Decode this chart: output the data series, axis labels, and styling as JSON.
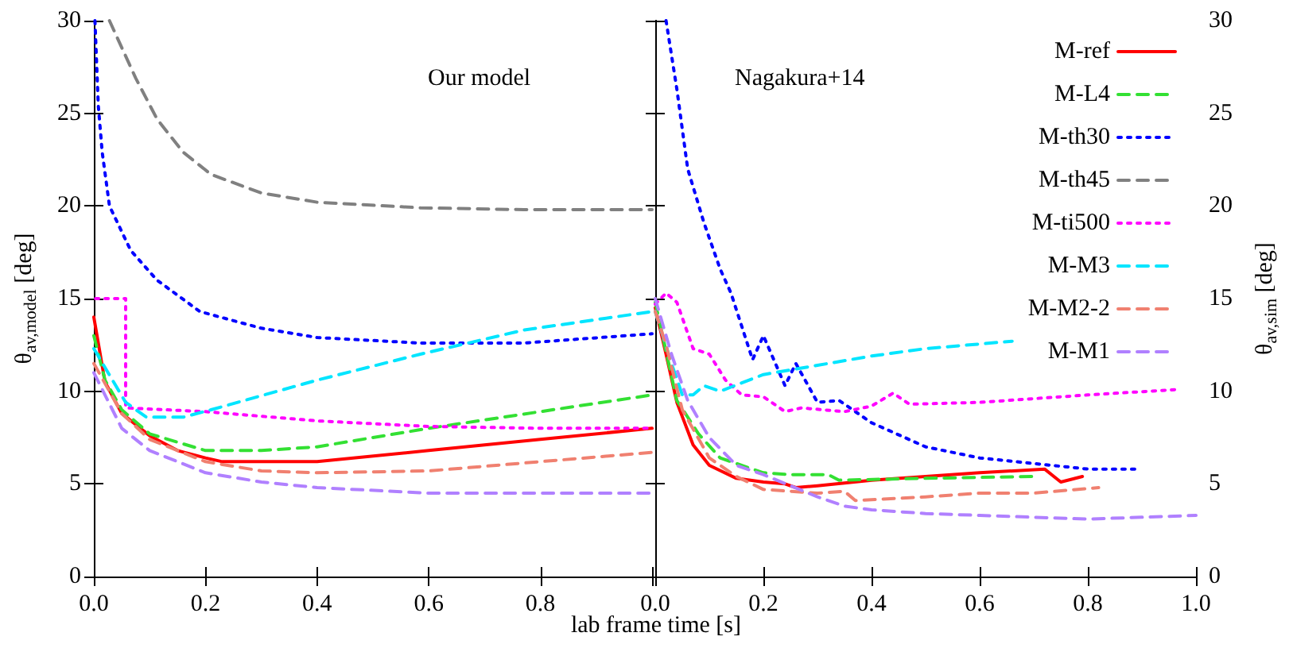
{
  "chart_data": [
    {
      "type": "line",
      "xlabel": "lab frame time [s]",
      "ylabel": "θ$_{av,model}$ [deg]",
      "annotations": [
        "Our model"
      ],
      "xlim": [
        0,
        1
      ],
      "xticks": [
        {
          "value": 0,
          "label": "0.0"
        },
        {
          "value": 0.2,
          "label": "0.2"
        },
        {
          "value": 0.4,
          "label": "0.4"
        },
        {
          "value": 0.6,
          "label": "0.6"
        },
        {
          "value": 0.8,
          "label": "0.8"
        },
        {
          "value": 1,
          "label": null
        }
      ],
      "ylim": [
        0,
        30
      ],
      "yticks": [
        0,
        5,
        10,
        15,
        20,
        25,
        30
      ],
      "grid": false,
      "legend": false,
      "marker": "none",
      "series": [
        {
          "color": "#ff0000",
          "line_style": "solid",
          "x": [
            0,
            0.02,
            0.05,
            0.1,
            0.15,
            0.2,
            0.23,
            0.4,
            0.6,
            0.8,
            1.0
          ],
          "values": [
            14,
            10.5,
            8.8,
            7.6,
            6.8,
            6.4,
            6.2,
            6.2,
            6.8,
            7.4,
            8.0
          ]
        },
        {
          "color": "#33e033",
          "line_style": "dashed",
          "x": [
            0,
            0.02,
            0.05,
            0.1,
            0.2,
            0.3,
            0.4,
            0.6,
            0.8,
            1.0
          ],
          "values": [
            13,
            10.6,
            9,
            7.7,
            6.8,
            6.8,
            7.0,
            8.0,
            8.9,
            9.8
          ]
        },
        {
          "color": "#0000ff",
          "line_style": "dotted",
          "x": [
            0.002,
            0.008,
            0.015,
            0.028,
            0.066,
            0.113,
            0.19,
            0.3,
            0.4,
            0.585,
            0.77,
            1.0
          ],
          "values": [
            30,
            25.4,
            22.9,
            20,
            17.6,
            16,
            14.3,
            13.4,
            12.9,
            12.6,
            12.6,
            13.1
          ]
        },
        {
          "color": "#808080",
          "line_style": "dashed",
          "x": [
            0.028,
            0.075,
            0.113,
            0.16,
            0.21,
            0.3,
            0.4,
            0.585,
            0.77,
            1.0
          ],
          "values": [
            30,
            26.9,
            24.7,
            22.9,
            21.7,
            20.7,
            20.2,
            19.9,
            19.8,
            19.8
          ]
        },
        {
          "color": "#ff00ff",
          "line_style": "dotted",
          "x": [
            0.003,
            0.057,
            0.057,
            0.2,
            0.4,
            0.6,
            0.8,
            1.0
          ],
          "values": [
            15,
            15,
            9.1,
            8.9,
            8.4,
            8.1,
            8.0,
            8.0
          ]
        },
        {
          "color": "#00e5ff",
          "line_style": "dashed",
          "x": [
            0,
            0.057,
            0.094,
            0.16,
            0.21,
            0.4,
            0.585,
            0.77,
            1.0
          ],
          "values": [
            12.3,
            9.4,
            8.6,
            8.6,
            9.0,
            10.6,
            12.0,
            13.3,
            14.3
          ]
        },
        {
          "color": "#f08070",
          "line_style": "dashed",
          "x": [
            0,
            0.05,
            0.1,
            0.2,
            0.3,
            0.4,
            0.6,
            0.8,
            1.0
          ],
          "values": [
            11.5,
            8.8,
            7.4,
            6.2,
            5.7,
            5.6,
            5.7,
            6.2,
            6.7
          ]
        },
        {
          "color": "#b080ff",
          "line_style": "dashed",
          "x": [
            0,
            0.05,
            0.1,
            0.2,
            0.3,
            0.4,
            0.6,
            0.8,
            1.0
          ],
          "values": [
            11,
            8.0,
            6.8,
            5.6,
            5.1,
            4.8,
            4.5,
            4.5,
            4.5
          ]
        }
      ]
    },
    {
      "type": "line",
      "y2label": "θ$_{av,sim}$ [deg]",
      "annotations": [
        "Nagakura+14"
      ],
      "xlim": [
        0,
        1
      ],
      "xticks": [
        {
          "value": 0,
          "label": "0.0"
        },
        {
          "value": 0.2,
          "label": "0.2"
        },
        {
          "value": 0.4,
          "label": "0.4"
        },
        {
          "value": 0.6,
          "label": "0.6"
        },
        {
          "value": 0.8,
          "label": "0.8"
        },
        {
          "value": 1,
          "label": "1.0"
        }
      ],
      "y2lim": [
        0,
        30
      ],
      "y2ticks": [
        0,
        5,
        10,
        15,
        20,
        25,
        30
      ],
      "grid": false,
      "legend": "top right",
      "marker": "none",
      "series": [
        {
          "name": "M-ref",
          "axis": "y2",
          "color": "#ff0000",
          "line_style": "solid",
          "x": [
            0,
            0.02,
            0.04,
            0.07,
            0.1,
            0.15,
            0.2,
            0.24,
            0.26,
            0.3,
            0.4,
            0.5,
            0.6,
            0.72,
            0.75,
            0.79
          ],
          "values": [
            14.5,
            12,
            9.4,
            7.1,
            6.0,
            5.3,
            5.1,
            5.0,
            4.8,
            4.9,
            5.2,
            5.4,
            5.6,
            5.8,
            5.1,
            5.4
          ]
        },
        {
          "name": "M-L4",
          "axis": "y2",
          "color": "#33e033",
          "line_style": "dashed",
          "x": [
            0,
            0.04,
            0.08,
            0.12,
            0.15,
            0.2,
            0.25,
            0.32,
            0.34,
            0.5,
            0.7
          ],
          "values": [
            14.8,
            9.5,
            7.7,
            6.4,
            6.1,
            5.6,
            5.5,
            5.5,
            5.2,
            5.3,
            5.4
          ]
        },
        {
          "name": "M-th30",
          "axis": "y2",
          "color": "#0000ff",
          "line_style": "dotted",
          "x": [
            0.02,
            0.04,
            0.06,
            0.09,
            0.12,
            0.14,
            0.18,
            0.2,
            0.24,
            0.26,
            0.3,
            0.34,
            0.4,
            0.5,
            0.6,
            0.7,
            0.8,
            0.89
          ],
          "values": [
            30,
            26.3,
            22,
            19.1,
            16.6,
            15.3,
            11.7,
            13,
            10.3,
            11.5,
            9.4,
            9.5,
            8.3,
            7.0,
            6.4,
            6.1,
            5.8,
            5.8
          ]
        },
        {
          "name": "M-th45",
          "axis": "y2",
          "color": "#808080",
          "line_style": "dashed"
        },
        {
          "name": "M-ti500",
          "axis": "y2",
          "color": "#ff00ff",
          "line_style": "dotted",
          "x": [
            0,
            0.02,
            0.04,
            0.07,
            0.1,
            0.13,
            0.16,
            0.2,
            0.24,
            0.27,
            0.35,
            0.4,
            0.44,
            0.47,
            0.6,
            0.8,
            0.97
          ],
          "values": [
            14.7,
            15.3,
            14.8,
            12.3,
            12,
            10.6,
            9.8,
            9.7,
            8.9,
            9.1,
            8.9,
            9.2,
            9.9,
            9.3,
            9.4,
            9.8,
            10.1
          ]
        },
        {
          "name": "M-M3",
          "axis": "y2",
          "color": "#00e5ff",
          "line_style": "dashed",
          "x": [
            0,
            0.03,
            0.05,
            0.07,
            0.09,
            0.12,
            0.2,
            0.3,
            0.4,
            0.5,
            0.66
          ],
          "values": [
            14.3,
            11.5,
            9.8,
            9.8,
            10.3,
            10,
            10.9,
            11.4,
            11.9,
            12.3,
            12.7
          ]
        },
        {
          "name": "M-M2-2",
          "axis": "y2",
          "color": "#f08070",
          "line_style": "dashed",
          "x": [
            0,
            0.02,
            0.05,
            0.1,
            0.15,
            0.2,
            0.3,
            0.35,
            0.37,
            0.5,
            0.6,
            0.7,
            0.82
          ],
          "values": [
            14.3,
            12.5,
            9.0,
            6.4,
            5.4,
            4.7,
            4.5,
            4.6,
            4.1,
            4.3,
            4.5,
            4.5,
            4.8
          ]
        },
        {
          "name": "M-M1",
          "axis": "y2",
          "color": "#b080ff",
          "line_style": "dashed",
          "x": [
            0,
            0.03,
            0.06,
            0.1,
            0.15,
            0.2,
            0.25,
            0.3,
            0.35,
            0.4,
            0.5,
            0.6,
            0.7,
            0.8,
            0.9,
            1.0
          ],
          "values": [
            15,
            12,
            9.5,
            7.5,
            6.0,
            5.5,
            4.9,
            4.3,
            3.8,
            3.6,
            3.4,
            3.3,
            3.2,
            3.1,
            3.2,
            3.3
          ]
        }
      ]
    }
  ]
}
